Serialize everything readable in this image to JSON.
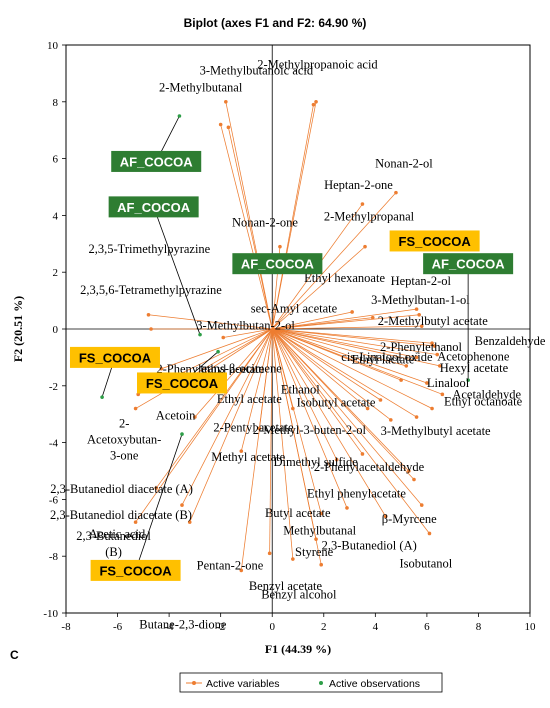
{
  "chart_data": {
    "type": "scatter",
    "title": "Biplot (axes F1 and F2: 64.90 %)",
    "xlabel": "F1 (44.39 %)",
    "ylabel": "F2 (20.51 %)",
    "panel_label": "C",
    "xlim": [
      -8,
      10
    ],
    "ylim": [
      -10,
      10
    ],
    "xticks": [
      "-8",
      "-6",
      "-4",
      "-2",
      "0",
      "2",
      "4",
      "6",
      "8",
      "10"
    ],
    "yticks": [
      "-10",
      "-8",
      "-6",
      "-4",
      "-2",
      "0",
      "2",
      "4",
      "6",
      "8",
      "10"
    ],
    "legend": {
      "position": "bottom",
      "items": [
        {
          "label": "Active variables",
          "color": "#ED7D31"
        },
        {
          "label": "Active observations",
          "color": "#2E9E48"
        }
      ]
    },
    "colors": {
      "variable": "#ED7D31",
      "observation": "#2E9E48",
      "af_box": "#2E7D32",
      "fs_box": "#FFC000",
      "connector": "#000000"
    },
    "variables": [
      {
        "name": "3-Methylbutanoic acid",
        "x": -1.7,
        "y": 7.1
      },
      {
        "name": "2-Methylbutanal",
        "x": -2.0,
        "y": 7.2
      },
      {
        "name": "2-Methylpropanoic acid",
        "x": 1.6,
        "y": 7.9
      },
      {
        "name": "",
        "x": 1.7,
        "y": 8.0
      },
      {
        "name": "",
        "x": -1.8,
        "y": 8.0
      },
      {
        "name": "Heptan-2-one",
        "x": 3.5,
        "y": 4.4
      },
      {
        "name": "Nonan-2-ol",
        "x": 4.8,
        "y": 4.8
      },
      {
        "name": "2-Methylpropanal",
        "x": 3.6,
        "y": 2.9
      },
      {
        "name": "Nonan-2-one",
        "x": 0.3,
        "y": 2.9
      },
      {
        "name": "Ethyl hexanoate",
        "x": 3.1,
        "y": 0.6
      },
      {
        "name": "Heptan-2-ol",
        "x": 5.6,
        "y": 0.7
      },
      {
        "name": "3-Methylbutan-1-ol",
        "x": 5.7,
        "y": 0.5
      },
      {
        "name": "2-Methylbutyl acetate",
        "x": 5.8,
        "y": 0.1
      },
      {
        "name": "3-Methylbutan-2-ol",
        "x": -1.9,
        "y": -0.3
      },
      {
        "name": "sec-Amyl acetate",
        "x": 3.9,
        "y": 0.4
      },
      {
        "name": "2-Phenylethanol",
        "x": 6.2,
        "y": -0.5
      },
      {
        "name": "Benzaldehyde",
        "x": 6.3,
        "y": -0.6
      },
      {
        "name": "Acetophenone",
        "x": 6.4,
        "y": -0.9
      },
      {
        "name": "Hexyl acetate",
        "x": 6.5,
        "y": -1.3
      },
      {
        "name": "Ethyl lactate",
        "x": 5.6,
        "y": -1.0
      },
      {
        "name": "cis-Linalool oxide",
        "x": 5.2,
        "y": -1.3
      },
      {
        "name": "Linalool",
        "x": 6.0,
        "y": -1.9
      },
      {
        "name": "Acetaldehyde",
        "x": 6.6,
        "y": -2.3
      },
      {
        "name": "Ethyl octanoate",
        "x": 6.2,
        "y": -2.8
      },
      {
        "name": "3-Methylbutyl acetate",
        "x": 5.6,
        "y": -3.1
      },
      {
        "name": "2-Phenylethyl acetate",
        "x": -4.3,
        "y": -1.4
      },
      {
        "name": "trans-β-ocimene",
        "x": -2.9,
        "y": -1.7
      },
      {
        "name": "Acetoin",
        "x": -5.3,
        "y": -2.8
      },
      {
        "name": "Ethyl acetate",
        "x": -3.0,
        "y": -3.1
      },
      {
        "name": "2-Pentyl acetate",
        "x": -0.5,
        "y": -3.5
      },
      {
        "name": "Ethanol",
        "x": 0.8,
        "y": -2.8
      },
      {
        "name": "Isobutyl acetate",
        "x": 3.7,
        "y": -2.8
      },
      {
        "name": "2-Methyl-3-buten-2-ol",
        "x": 4.6,
        "y": -3.2
      },
      {
        "name": "Methyl acetate",
        "x": -1.2,
        "y": -4.3
      },
      {
        "name": "2-Phenylacetaldehyde",
        "x": 5.3,
        "y": -5.0
      },
      {
        "name": "Dimethyl sulfide",
        "x": 3.5,
        "y": -4.4
      },
      {
        "name": "Butyl acetate",
        "x": 2.9,
        "y": -6.3
      },
      {
        "name": "Methylbutanal",
        "x": 1.9,
        "y": -6.5
      },
      {
        "name": "Ethyl phenylacetate",
        "x": 5.5,
        "y": -5.3
      },
      {
        "name": "β-Myrcene",
        "x": 5.8,
        "y": -6.2
      },
      {
        "name": "2,3-Butanediol (A)",
        "x": 4.4,
        "y": -6.6
      },
      {
        "name": "Isobutanol",
        "x": 6.1,
        "y": -7.2
      },
      {
        "name": "2,3-Butanediol diacetate (A)",
        "x": -4.5,
        "y": -5.6
      },
      {
        "name": "2,3-Butanediol diacetate (B)",
        "x": -3.5,
        "y": -6.2
      },
      {
        "name": "Acetic acid",
        "x": -3.2,
        "y": -6.8
      },
      {
        "name": "2,3-Butanediol (B)",
        "x": -5.3,
        "y": -6.8
      },
      {
        "name": "Pentan-2-one",
        "x": -0.1,
        "y": -7.9
      },
      {
        "name": "Styrene",
        "x": 1.7,
        "y": -7.4
      },
      {
        "name": "Benzyl acetate",
        "x": 0.8,
        "y": -8.1
      },
      {
        "name": "Benzyl alcohol",
        "x": 1.9,
        "y": -8.3
      },
      {
        "name": "Butane-2,3-dione",
        "x": -1.2,
        "y": -8.5
      },
      {
        "name": "2-Acetoxybutan-3-one",
        "x": -5.2,
        "y": -2.3
      },
      {
        "name": "2,3,5-Trimethylpyrazine",
        "x": -4.8,
        "y": 0.5
      },
      {
        "name": "2,3,5,6-Tetramethylpyrazine",
        "x": -4.7,
        "y": 0.0
      },
      {
        "name": "",
        "x": 2.5,
        "y": -4.6
      },
      {
        "name": "",
        "x": 5.0,
        "y": -1.8
      },
      {
        "name": "",
        "x": 4.2,
        "y": -2.5
      }
    ],
    "observations": [
      {
        "name": "AF_COCOA",
        "x": -3.6,
        "y": 7.5,
        "box_x": -4.5,
        "box_y": 5.9
      },
      {
        "name": "AF_COCOA",
        "x": -2.8,
        "y": -0.2,
        "box_x": -4.6,
        "box_y": 4.3
      },
      {
        "name": "AF_COCOA",
        "x": 0.9,
        "y": 2.5,
        "box_x": 0.2,
        "box_y": 2.3
      },
      {
        "name": "FS_COCOA",
        "x": 6.4,
        "y": 3.4,
        "box_x": 6.3,
        "box_y": 3.1
      },
      {
        "name": "AF_COCOA",
        "x": 7.6,
        "y": -1.8,
        "box_x": 7.6,
        "box_y": 2.3
      },
      {
        "name": "FS_COCOA",
        "x": -6.6,
        "y": -2.4,
        "box_x": -6.1,
        "box_y": -1.0
      },
      {
        "name": "FS_COCOA",
        "x": -2.1,
        "y": -0.8,
        "box_x": -3.5,
        "box_y": -1.9
      },
      {
        "name": "FS_COCOA",
        "x": -3.5,
        "y": -3.7,
        "box_x": -5.3,
        "box_y": -8.5
      }
    ]
  }
}
